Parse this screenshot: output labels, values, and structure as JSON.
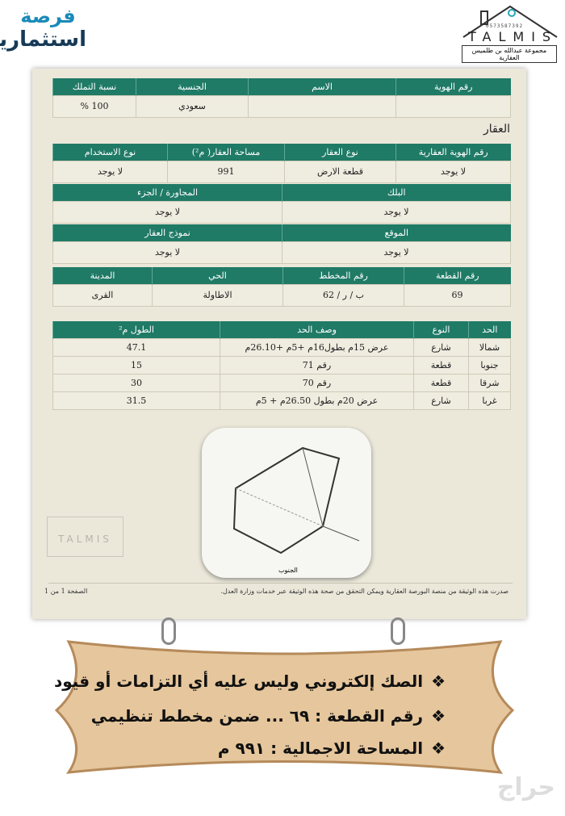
{
  "logos": {
    "left_line1": "فرصة",
    "left_line2": "استثمارية",
    "right_phone": "0573587392",
    "right_name": "TALMIS",
    "right_sub": "مجموعة عبدالله بن طلميس العقارية"
  },
  "owners": {
    "headers": [
      "رقم الهوية",
      "الاسم",
      "الجنسية",
      "نسبة التملك"
    ],
    "row": [
      "",
      "",
      "سعودي",
      "100 %"
    ]
  },
  "property_title": "العقار",
  "property": {
    "headers": [
      "رقم الهوية العقارية",
      "نوع العقار",
      "مساحة العقار( م²)",
      "نوع الاستخدام"
    ],
    "row": [
      "لا يوجد",
      "قطعة الارض",
      "991",
      "لا يوجد"
    ]
  },
  "block": {
    "headers": [
      "البلك",
      "المجاورة / الجزء"
    ],
    "row": [
      "لا يوجد",
      "لا يوجد"
    ]
  },
  "location": {
    "headers": [
      "الموقع",
      "نموذج العقار"
    ],
    "row": [
      "لا يوجد",
      "لا يوجد"
    ]
  },
  "plot": {
    "headers": [
      "رقم القطعة",
      "رقم المخطط",
      "الحي",
      "المدينة"
    ],
    "row": [
      "69",
      "ب / ر / 62",
      "الاطاولة",
      "القرى"
    ]
  },
  "boundaries": {
    "headers": [
      "الحد",
      "النوع",
      "وصف الحد",
      "الطول م²"
    ],
    "rows": [
      [
        "شمالا",
        "شارع",
        "عرض 15م بطول16م +5م +26.10م",
        "47.1"
      ],
      [
        "جنوبا",
        "قطعة",
        "رقم 71",
        "15"
      ],
      [
        "شرقا",
        "قطعة",
        "رقم 70",
        "30"
      ],
      [
        "غربا",
        "شارع",
        "عرض 20م بطول 26.50م + 5م",
        "31.5"
      ]
    ]
  },
  "sketch": {
    "label_south": "الجنوب"
  },
  "footer": {
    "note": "صدرت هذه الوثيقة من منصة البورصة العقارية ويمكن التحقق من صحة هذه الوثيقة عبر خدمات وزارة العدل.",
    "page": "الصفحة 1 من 1"
  },
  "sign": {
    "bullet": "❖",
    "lines": [
      "الصك إلكتروني  وليس عليه أي التزامات أو قيود",
      "رقم القطعة  :  ٦٩ ... ضمن مخطط تنظيمي",
      "المساحة الاجمالية : ٩٩١ م"
    ]
  },
  "watermark": "حراج",
  "colors": {
    "header": "#1f7a66",
    "paper": "#ebe8da",
    "sign": "#e6c69c"
  }
}
